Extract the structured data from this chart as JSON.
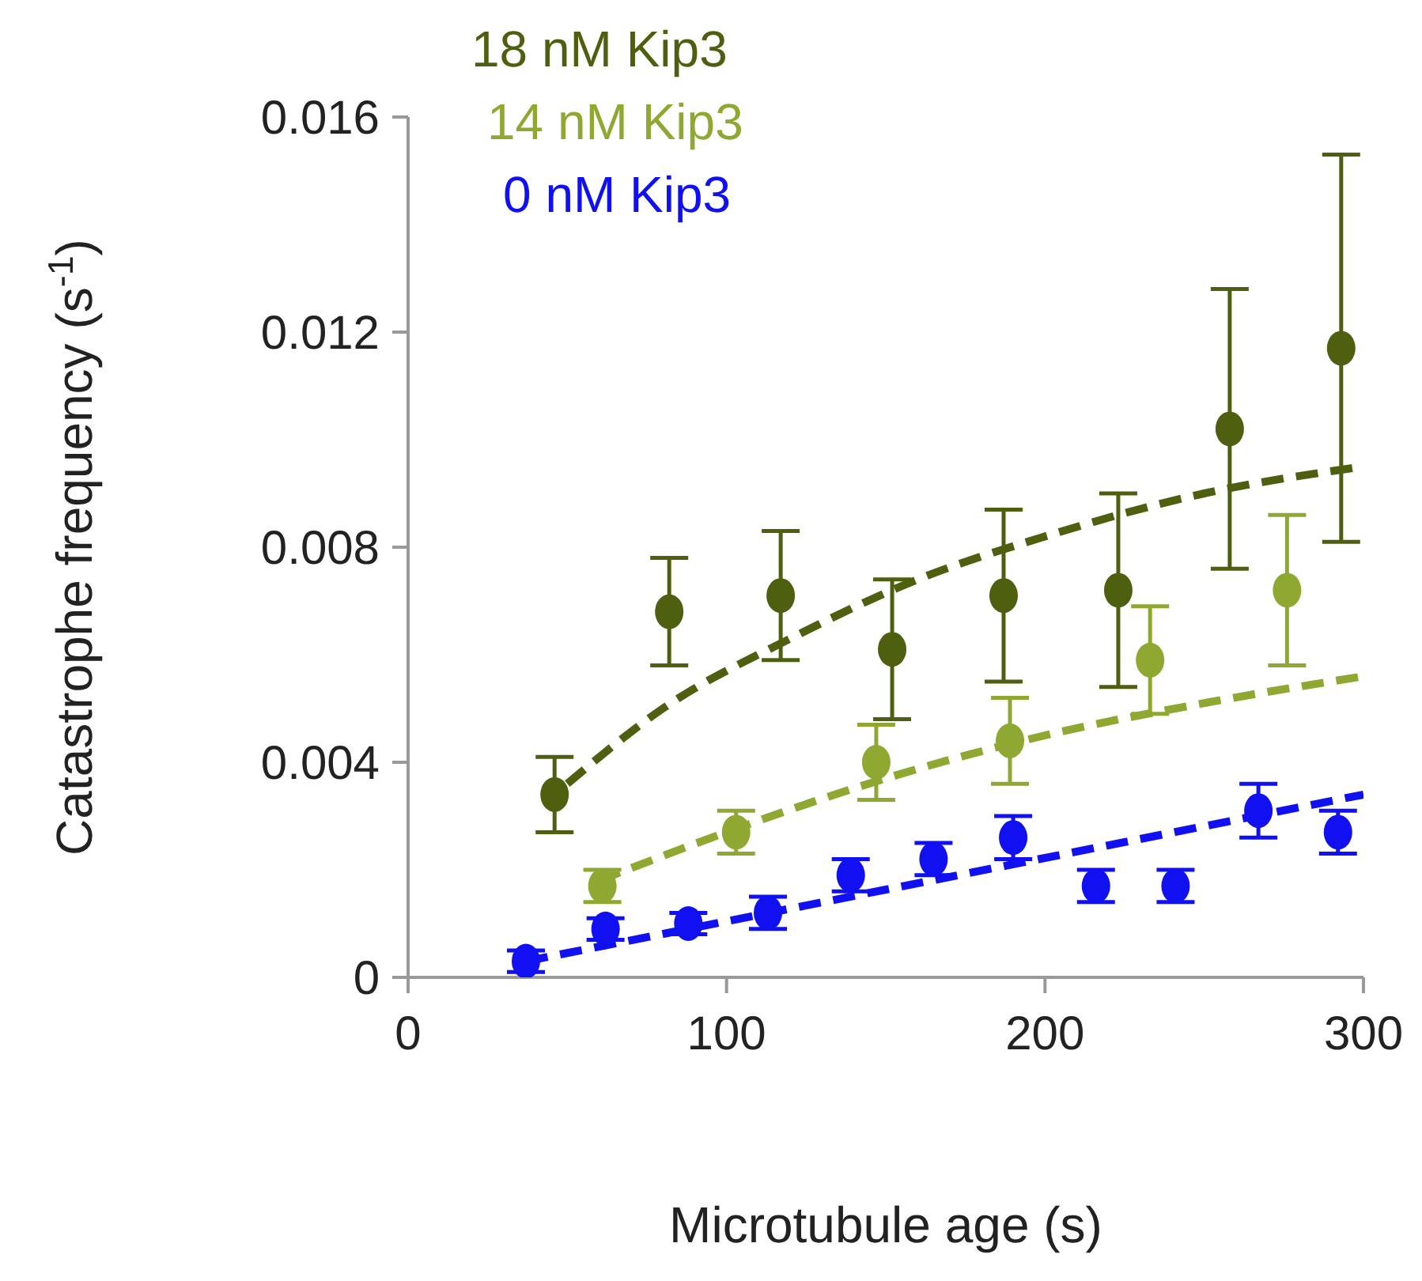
{
  "chart_data": {
    "type": "scatter",
    "xlabel": "Microtubule age (s)",
    "ylabel": "Catastrophe frequency (s$^{-1}$)",
    "xlim": [
      0,
      300
    ],
    "xticks": [
      0,
      100,
      200,
      300
    ],
    "ylim": [
      0,
      0.016
    ],
    "yticks": [
      0,
      0.004,
      0.008,
      0.012,
      0.016
    ],
    "grid": false,
    "legend": "top left",
    "marker": "circle",
    "series": [
      {
        "name": "18 nM Kip3",
        "color": "#4f5f10",
        "x": [
          46,
          82,
          117,
          152,
          187,
          223,
          258,
          293
        ],
        "values": [
          0.0034,
          0.0068,
          0.0071,
          0.0061,
          0.0071,
          0.0072,
          0.0102,
          0.0117
        ],
        "errors": [
          0.0007,
          0.001,
          0.0012,
          0.0013,
          0.0016,
          0.0018,
          0.0026,
          0.0036
        ]
      },
      {
        "name": "14 nM Kip3",
        "color": "#8fa832",
        "x": [
          61,
          103,
          147,
          189,
          233,
          276
        ],
        "values": [
          0.0017,
          0.0027,
          0.004,
          0.0044,
          0.0059,
          0.0072
        ],
        "errors": [
          0.0003,
          0.0004,
          0.0007,
          0.0008,
          0.001,
          0.0014
        ]
      },
      {
        "name": "0 nM Kip3",
        "color": "#1010f0",
        "x": [
          37,
          62,
          88,
          113,
          139,
          165,
          190,
          216,
          241,
          267,
          292
        ],
        "values": [
          0.0003,
          0.0009,
          0.001,
          0.0012,
          0.0019,
          0.0022,
          0.0026,
          0.0017,
          0.0017,
          0.0031,
          0.0027
        ],
        "errors": [
          0.0002,
          0.0002,
          0.0002,
          0.0003,
          0.0003,
          0.0003,
          0.0004,
          0.0003,
          0.0003,
          0.0005,
          0.0004
        ]
      },
      {
        "type": "line",
        "line_style": "dashed",
        "marker": "none",
        "color": "#4f5f10",
        "x": [
          50,
          80,
          120,
          160,
          200,
          250,
          300
        ],
        "values": [
          0.0036,
          0.005,
          0.0063,
          0.0074,
          0.0082,
          0.009,
          0.0095
        ]
      },
      {
        "type": "line",
        "line_style": "dashed",
        "marker": "none",
        "color": "#8fa832",
        "x": [
          60,
          100,
          150,
          200,
          250,
          300
        ],
        "values": [
          0.0018,
          0.0027,
          0.0037,
          0.0045,
          0.0051,
          0.0056
        ]
      },
      {
        "type": "line",
        "line_style": "dashed",
        "marker": "none",
        "color": "#1010f0",
        "x": [
          37,
          300
        ],
        "values": [
          0.0003,
          0.0034
        ]
      }
    ]
  }
}
